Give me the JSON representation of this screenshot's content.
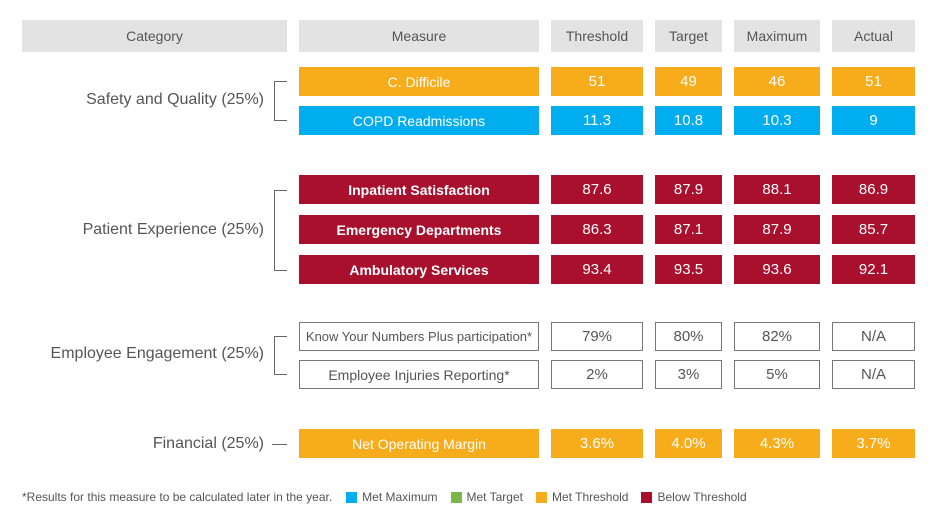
{
  "headers": {
    "category": "Category",
    "measure": "Measure",
    "threshold": "Threshold",
    "target": "Target",
    "maximum": "Maximum",
    "actual": "Actual"
  },
  "groups": [
    {
      "label": "Safety and Quality (25%)",
      "rows": [
        {
          "measure": "C. Difficile",
          "threshold": "51",
          "target": "49",
          "maximum": "46",
          "actual": "51",
          "status": "Met Threshold"
        },
        {
          "measure": "COPD Readmissions",
          "threshold": "11.3",
          "target": "10.8",
          "maximum": "10.3",
          "actual": "9",
          "status": "Met Maximum"
        }
      ]
    },
    {
      "label": "Patient Experience (25%)",
      "rows": [
        {
          "measure": "Inpatient Satisfaction",
          "threshold": "87.6",
          "target": "87.9",
          "maximum": "88.1",
          "actual": "86.9",
          "status": "Below Threshold"
        },
        {
          "measure": "Emergency Departments",
          "threshold": "86.3",
          "target": "87.1",
          "maximum": "87.9",
          "actual": "85.7",
          "status": "Below Threshold"
        },
        {
          "measure": "Ambulatory Services",
          "threshold": "93.4",
          "target": "93.5",
          "maximum": "93.6",
          "actual": "92.1",
          "status": "Below Threshold"
        }
      ]
    },
    {
      "label": "Employee Engagement (25%)",
      "rows": [
        {
          "measure": "Know Your Numbers Plus participation*",
          "threshold": "79%",
          "target": "80%",
          "maximum": "82%",
          "actual": "N/A",
          "status": "pending"
        },
        {
          "measure": "Employee Injuries Reporting*",
          "threshold": "2%",
          "target": "3%",
          "maximum": "5%",
          "actual": "N/A",
          "status": "pending"
        }
      ]
    },
    {
      "label": "Financial (25%)",
      "rows": [
        {
          "measure": "Net Operating Margin",
          "threshold": "3.6%",
          "target": "4.0%",
          "maximum": "4.3%",
          "actual": "3.7%",
          "status": "Met Threshold"
        }
      ]
    }
  ],
  "footnote": "*Results for this measure to be calculated later in the year.",
  "legend": [
    {
      "label": "Met Maximum",
      "color": "#00aeef"
    },
    {
      "label": "Met Target",
      "color": "#7ab648"
    },
    {
      "label": "Met Threshold",
      "color": "#f7ac1b"
    },
    {
      "label": "Below Threshold",
      "color": "#a8102e"
    }
  ]
}
